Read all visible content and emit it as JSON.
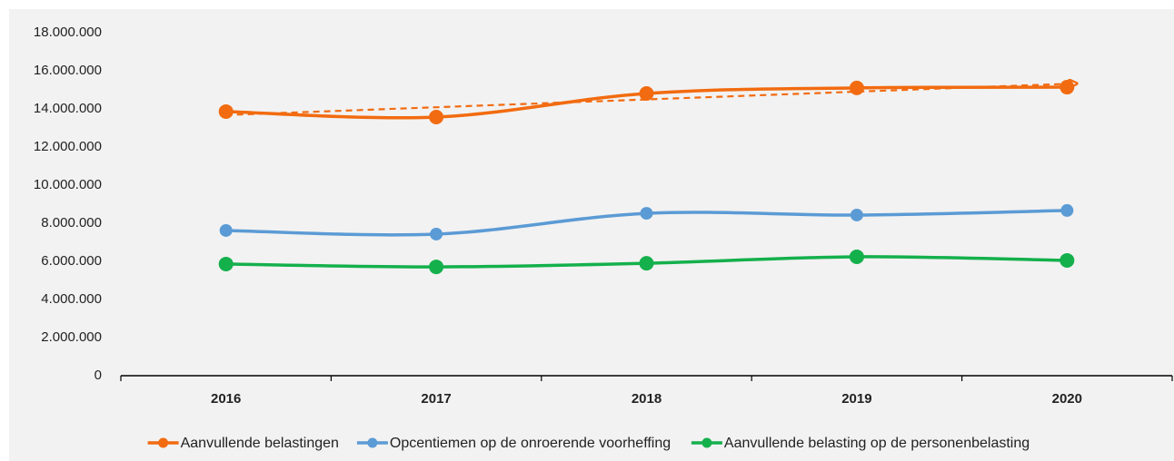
{
  "chart_data": {
    "type": "line",
    "categories": [
      "2016",
      "2017",
      "2018",
      "2019",
      "2020"
    ],
    "series": [
      {
        "name": "Aanvullende belastingen",
        "color": "#f26b10",
        "values": [
          13860000,
          13570000,
          14810000,
          15100000,
          15140000
        ],
        "trendline": true
      },
      {
        "name": "Opcentiemen op de onroerende voorheffing",
        "color": "#5b9bd5",
        "values": [
          7620000,
          7430000,
          8520000,
          8430000,
          8670000
        ]
      },
      {
        "name": "Aanvullende belasting op de personenbelasting",
        "color": "#14b04c",
        "values": [
          5860000,
          5710000,
          5900000,
          6240000,
          6050000
        ]
      }
    ],
    "ylim": [
      0,
      18000000
    ],
    "yticks": [
      0,
      {
        "value": 2000000,
        "label": "2.000.000"
      },
      {
        "value": 4000000,
        "label": "4.000.000"
      },
      {
        "value": 6000000,
        "label": "6.000.000"
      },
      {
        "value": 8000000,
        "label": "8.000.000"
      },
      {
        "value": 10000000,
        "label": "10.000.000"
      },
      {
        "value": 12000000,
        "label": "12.000.000"
      },
      {
        "value": 14000000,
        "label": "14.000.000"
      },
      {
        "value": 16000000,
        "label": "16.000.000"
      },
      {
        "value": 18000000,
        "label": "18.000.000"
      }
    ],
    "grid": false,
    "legend": "bottom"
  }
}
